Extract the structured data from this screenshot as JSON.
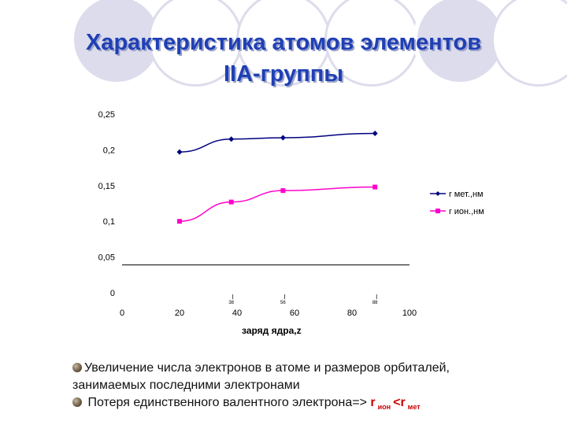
{
  "title": {
    "line1": "Характеристика атомов элементов",
    "line2": "IIA-группы"
  },
  "colors": {
    "title": "#1f3fb5",
    "decor": "#dcdcec",
    "series_met": "#000080",
    "series_ion": "#ff00cc",
    "emphasis": "#cc0000"
  },
  "chart_data": {
    "type": "line",
    "xlabel": "заряд ядра,z",
    "ylabel": "",
    "xlim": [
      0,
      100
    ],
    "ylim": [
      0,
      0.25
    ],
    "x_ticks": [
      "0",
      "20",
      "40",
      "60",
      "80",
      "100"
    ],
    "y_ticks": [
      "0",
      "0,05",
      "0,1",
      "0,15",
      "0,2",
      "0,25"
    ],
    "minor_labels": [
      {
        "x": 38,
        "text": "38"
      },
      {
        "x": 56,
        "text": "56"
      },
      {
        "x": 88,
        "text": "88"
      }
    ],
    "legend_position": "right",
    "series": [
      {
        "name": "r мет.,нм",
        "marker": "diamond",
        "x": [
          20,
          38,
          56,
          88
        ],
        "values": [
          0.197,
          0.215,
          0.217,
          0.223
        ]
      },
      {
        "name": "r ион.,нм",
        "marker": "square",
        "x": [
          20,
          38,
          56,
          88
        ],
        "values": [
          0.1,
          0.127,
          0.143,
          0.148
        ]
      }
    ]
  },
  "text": {
    "bullet1_line1": "Увеличение числа электронов в атоме и размеров орбиталей,",
    "bullet1_line2": "занимаемых последними электронами",
    "bullet2_main": "Потеря единственного валентного электрона=>",
    "bullet2_r1": "r",
    "bullet2_sub1": "ион",
    "bullet2_lt": "<r",
    "bullet2_sub2": "мет"
  }
}
